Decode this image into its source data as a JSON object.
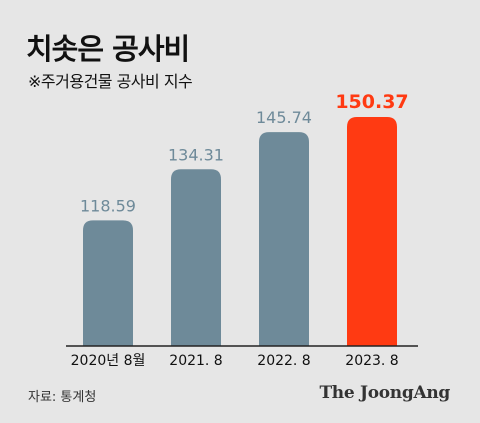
{
  "title": "치솟은 공사비",
  "subtitle": "※주거용건물 공사비 지수",
  "source": "자료: 통계청",
  "brand": "The JoongAng",
  "colors": {
    "bar": "#6e8a99",
    "highlight": "#ff3a12",
    "label": "#6e8a99",
    "axis": "#222222"
  },
  "chart_data": {
    "type": "bar",
    "categories": [
      "2020년 8월",
      "2021. 8",
      "2022. 8",
      "2023. 8"
    ],
    "values": [
      118.59,
      134.31,
      145.74,
      150.37
    ],
    "value_labels": [
      "118.59",
      "134.31",
      "145.74",
      "150.37"
    ],
    "highlight_index": 3,
    "title": "치솟은 공사비",
    "subtitle": "※주거용건물 공사비 지수",
    "ylim": [
      80,
      150.37
    ],
    "grid": false,
    "legend": "none"
  }
}
